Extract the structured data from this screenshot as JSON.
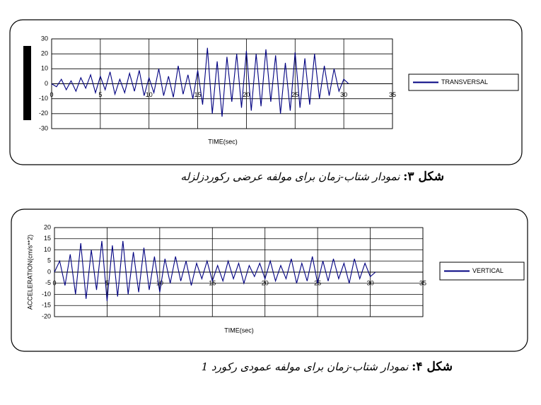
{
  "chart_data": [
    {
      "type": "line",
      "caption_label": "شکل ۳:",
      "caption": "نمودار شتاب-زمان برای مولفه عرضی رکوردزلزله",
      "xlabel": "TIME(sec)",
      "x": [
        0,
        0.5,
        1,
        1.5,
        2,
        2.5,
        3,
        3.5,
        4,
        4.5,
        5,
        5.5,
        6,
        6.5,
        7,
        7.5,
        8,
        8.5,
        9,
        9.5,
        10,
        10.5,
        11,
        11.5,
        12,
        12.5,
        13,
        13.5,
        14,
        14.5,
        15,
        15.5,
        16,
        16.5,
        17,
        17.5,
        18,
        18.5,
        19,
        19.5,
        20,
        20.5,
        21,
        21.5,
        22,
        22.5,
        23,
        23.5,
        24,
        24.5,
        25,
        25.5,
        26,
        26.5,
        27,
        27.5,
        28,
        28.5,
        29,
        29.5,
        30,
        30.5
      ],
      "series": [
        {
          "name": "TRANSVERSAL",
          "color": "#000080",
          "values": [
            0,
            -2,
            3,
            -4,
            2,
            -5,
            4,
            -3,
            6,
            -6,
            5,
            -4,
            8,
            -7,
            3,
            -6,
            7,
            -5,
            9,
            -8,
            4,
            -6,
            10,
            -8,
            5,
            -9,
            12,
            -7,
            6,
            -10,
            9,
            -14,
            24,
            -20,
            15,
            -22,
            18,
            -12,
            20,
            -16,
            22,
            -18,
            20,
            -15,
            23,
            -12,
            19,
            -20,
            14,
            -18,
            21,
            -16,
            17,
            -14,
            20,
            -10,
            12,
            -8,
            10,
            -5,
            3,
            0
          ]
        }
      ],
      "xlim": [
        0,
        35
      ],
      "xticks": [
        0,
        5,
        10,
        15,
        20,
        25,
        30,
        35
      ],
      "ylim": [
        -30,
        30
      ],
      "yticks": [
        -30,
        -20,
        -10,
        0,
        10,
        20,
        30
      ],
      "grid": true
    },
    {
      "type": "line",
      "caption_label": "شکل ۴:",
      "caption": "نمودار شتاب-زمان برای مولفه عمودی رکورد 1",
      "xlabel": "TIME(sec)",
      "ylabel": "ACCELERATION(cm/s**2)",
      "x": [
        0,
        0.5,
        1,
        1.5,
        2,
        2.5,
        3,
        3.5,
        4,
        4.5,
        5,
        5.5,
        6,
        6.5,
        7,
        7.5,
        8,
        8.5,
        9,
        9.5,
        10,
        10.5,
        11,
        11.5,
        12,
        12.5,
        13,
        13.5,
        14,
        14.5,
        15,
        15.5,
        16,
        16.5,
        17,
        17.5,
        18,
        18.5,
        19,
        19.5,
        20,
        20.5,
        21,
        21.5,
        22,
        22.5,
        23,
        23.5,
        24,
        24.5,
        25,
        25.5,
        26,
        26.5,
        27,
        27.5,
        28,
        28.5,
        29,
        29.5,
        30,
        30.5
      ],
      "series": [
        {
          "name": "VERTICAL",
          "color": "#000080",
          "values": [
            0,
            5,
            -6,
            8,
            -10,
            13,
            -12,
            10,
            -8,
            14,
            -13,
            12,
            -11,
            14,
            -10,
            9,
            -9,
            11,
            -8,
            7,
            -9,
            6,
            -5,
            7,
            -4,
            5,
            -6,
            4,
            -3,
            5,
            -4,
            3,
            -4,
            5,
            -3,
            4,
            -5,
            3,
            -2,
            4,
            -3,
            5,
            -4,
            3,
            -3,
            6,
            -5,
            4,
            -4,
            7,
            -5,
            5,
            -4,
            6,
            -3,
            4,
            -5,
            6,
            -3,
            4,
            -2,
            0
          ]
        }
      ],
      "xlim": [
        0,
        35
      ],
      "xticks": [
        0,
        5,
        10,
        15,
        20,
        25,
        30,
        35
      ],
      "ylim": [
        -20,
        20
      ],
      "yticks": [
        -20,
        -15,
        -10,
        -5,
        0,
        5,
        10,
        15,
        20
      ],
      "grid": true
    }
  ]
}
